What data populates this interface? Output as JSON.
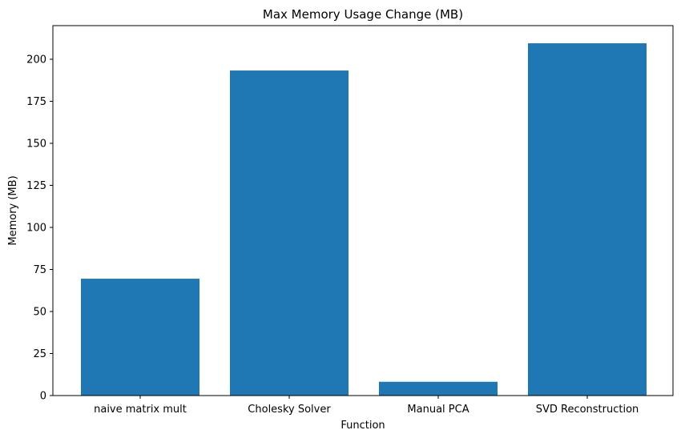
{
  "chart_data": {
    "type": "bar",
    "title": "Max Memory Usage Change (MB)",
    "xlabel": "Function",
    "ylabel": "Memory (MB)",
    "categories": [
      "naive matrix mult",
      "Cholesky Solver",
      "Manual PCA",
      "SVD Reconstruction"
    ],
    "values": [
      69.5,
      193.3,
      8.2,
      209.5
    ],
    "ylim": [
      0,
      220
    ],
    "yticks": [
      0,
      25,
      50,
      75,
      100,
      125,
      150,
      175,
      200
    ],
    "grid": false,
    "colors": {
      "bar": "#1f77b4"
    }
  }
}
